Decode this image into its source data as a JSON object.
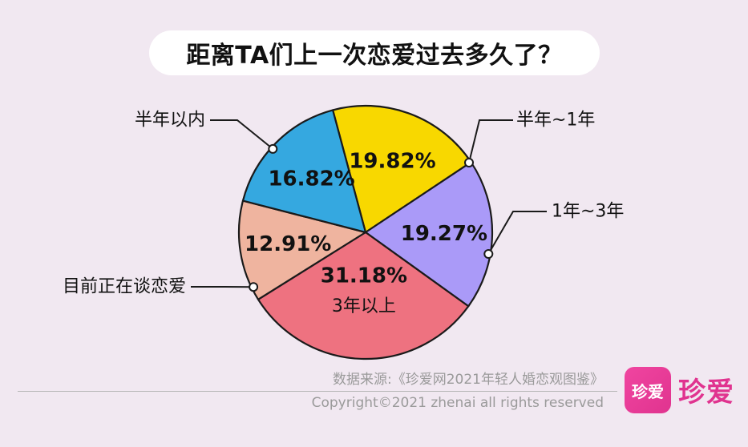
{
  "header": {
    "title": "距离TA们上一次恋爱过去多久了？"
  },
  "chart_data": {
    "type": "pie",
    "title": "距离TA们上一次恋爱过去多久了？",
    "slices": [
      {
        "label": "半年~1年",
        "value": 19.82,
        "value_label": "19.82%",
        "color": "#f8d800"
      },
      {
        "label": "1年~3年",
        "value": 19.27,
        "value_label": "19.27%",
        "color": "#aa9af8"
      },
      {
        "label": "3年以上",
        "value": 31.18,
        "value_label": "31.18%",
        "color": "#ee7280"
      },
      {
        "label": "目前正在谈恋爱",
        "value": 12.91,
        "value_label": "12.91%",
        "color": "#efb49f"
      },
      {
        "label": "半年以内",
        "value": 16.82,
        "value_label": "16.82%",
        "color": "#35a8e0"
      }
    ]
  },
  "footer": {
    "source": "数据来源:《珍爱网2021年轻人婚恋观图鉴》",
    "copyright": "Copyright©2021  zhenai  all rights reserved"
  },
  "brand": {
    "badge": "珍爱",
    "name": "珍爱"
  }
}
